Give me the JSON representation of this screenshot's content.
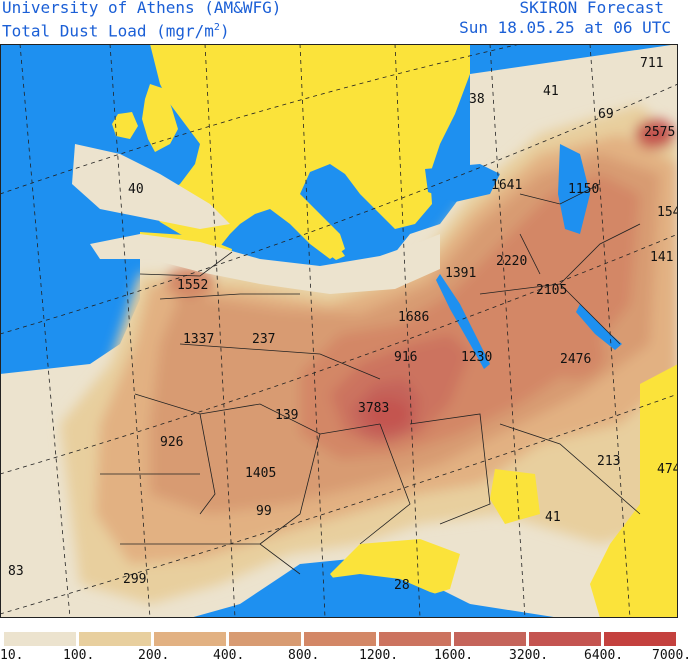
{
  "header": {
    "title_left_line1": "University of Athens (AM&WFG)",
    "title_left_line2_prefix": "Total Dust Load (mgr/m",
    "title_left_line2_sup": "2",
    "title_left_line2_suffix": ")",
    "title_right_line1": "SKIRON Forecast",
    "title_right_line2": "Sun 18.05.25 at 06 UTC"
  },
  "colors": {
    "sea": "#1e90f0",
    "land_clear": "#fbe33a",
    "border": "#222222",
    "grid": "#222222"
  },
  "legend": {
    "bins": [
      {
        "color": "#ece3ce"
      },
      {
        "color": "#e8cf9e"
      },
      {
        "color": "#e2b182"
      },
      {
        "color": "#d89b72"
      },
      {
        "color": "#d38766"
      },
      {
        "color": "#cc735f"
      },
      {
        "color": "#c5645a"
      },
      {
        "color": "#c45450"
      },
      {
        "color": "#c4413e"
      }
    ],
    "ticks": [
      "10.",
      "100.",
      "200.",
      "400.",
      "800.",
      "1200.",
      "1600.",
      "3200.",
      "6400.",
      "7000."
    ]
  },
  "map_labels": [
    {
      "id": "v711",
      "text": "711"
    },
    {
      "id": "v38",
      "text": "38"
    },
    {
      "id": "v41a",
      "text": "41"
    },
    {
      "id": "v69",
      "text": "69"
    },
    {
      "id": "v2575",
      "text": "2575"
    },
    {
      "id": "v40",
      "text": "40"
    },
    {
      "id": "v1641",
      "text": "1641"
    },
    {
      "id": "v1150",
      "text": "1150"
    },
    {
      "id": "v154",
      "text": "154"
    },
    {
      "id": "v141",
      "text": "141"
    },
    {
      "id": "v2220",
      "text": "2220"
    },
    {
      "id": "v1391",
      "text": "1391"
    },
    {
      "id": "v1552",
      "text": "1552"
    },
    {
      "id": "v2105",
      "text": "2105"
    },
    {
      "id": "v1686",
      "text": "1686"
    },
    {
      "id": "v1337",
      "text": "1337"
    },
    {
      "id": "v237",
      "text": "237"
    },
    {
      "id": "v916",
      "text": "916"
    },
    {
      "id": "v1230",
      "text": "1230"
    },
    {
      "id": "v2476",
      "text": "2476"
    },
    {
      "id": "v3783",
      "text": "3783"
    },
    {
      "id": "v139",
      "text": "139"
    },
    {
      "id": "v926",
      "text": "926"
    },
    {
      "id": "v1405",
      "text": "1405"
    },
    {
      "id": "v213",
      "text": "213"
    },
    {
      "id": "v474",
      "text": "474"
    },
    {
      "id": "v99",
      "text": "99"
    },
    {
      "id": "v41b",
      "text": "41"
    },
    {
      "id": "v83",
      "text": "83"
    },
    {
      "id": "v299",
      "text": "299"
    },
    {
      "id": "v28",
      "text": "28"
    }
  ]
}
